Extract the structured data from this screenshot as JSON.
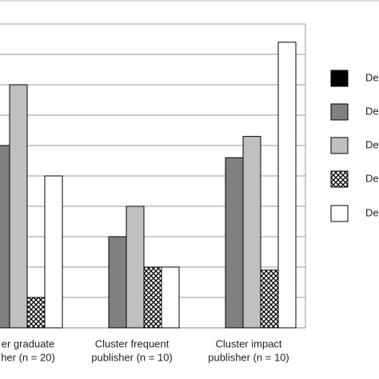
{
  "chart_data": {
    "type": "bar",
    "categories": [
      [
        "er graduate",
        "her (n = 20)"
      ],
      [
        "Cluster frequent",
        "publisher (n = 10)"
      ],
      [
        "Cluster impact",
        "publisher (n = 10)"
      ]
    ],
    "series": [
      {
        "name": "Dec",
        "color": "#000000",
        "values": [
          null,
          0,
          0
        ]
      },
      {
        "name": "Dec",
        "color": "#808080",
        "values": [
          6,
          3,
          5.6
        ]
      },
      {
        "name": "Dec",
        "color": "#c0c0c0",
        "values": [
          8,
          4,
          6.3
        ]
      },
      {
        "name": "Dec",
        "color": "#ffffff",
        "pattern": "checker",
        "values": [
          1,
          2,
          1.9
        ]
      },
      {
        "name": "Dec",
        "color": "#ffffff",
        "values": [
          5,
          2,
          9.4
        ]
      }
    ],
    "ylim": [
      0,
      10
    ],
    "yticks": [
      0,
      1,
      2,
      3,
      4,
      5,
      6,
      7,
      8,
      9,
      10
    ],
    "grid": true
  }
}
